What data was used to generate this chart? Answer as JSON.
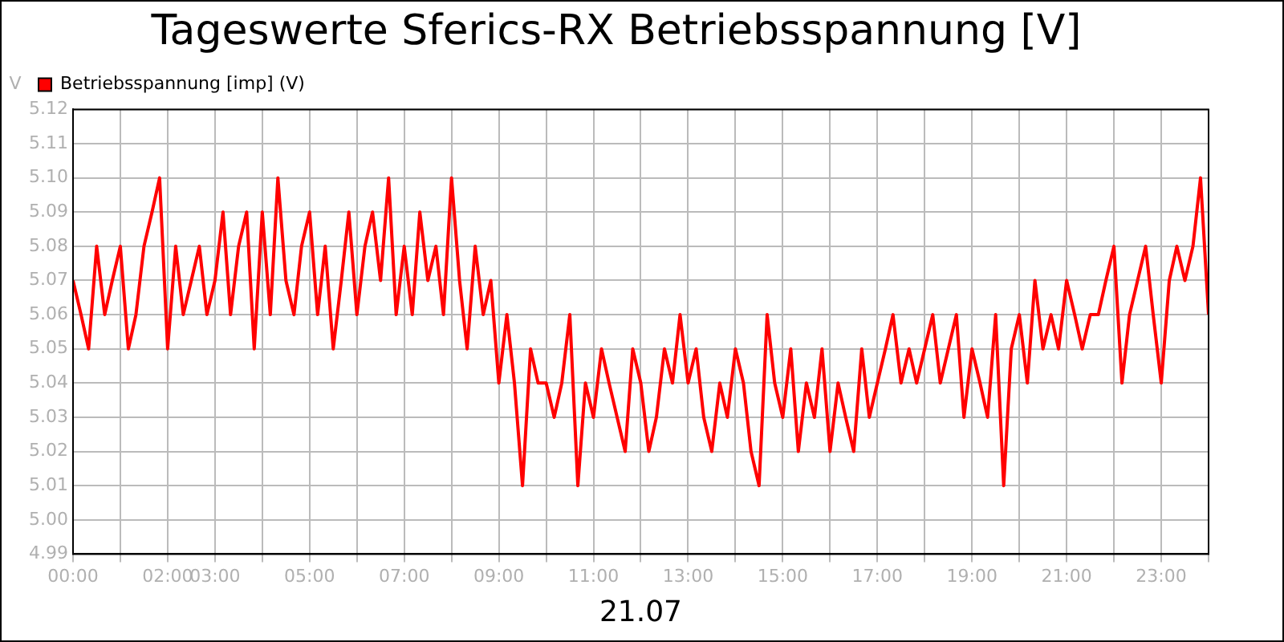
{
  "chart_data": {
    "type": "line",
    "title": "Tageswerte Sferics-RX Betriebsspannung [V]",
    "xlabel": "21.07",
    "ylabel": "V",
    "x": [
      0,
      0.17,
      0.33,
      0.5,
      0.67,
      0.83,
      1,
      1.17,
      1.33,
      1.5,
      1.67,
      1.83,
      2,
      2.17,
      2.33,
      2.5,
      2.67,
      2.83,
      3,
      3.17,
      3.33,
      3.5,
      3.67,
      3.83,
      4,
      4.17,
      4.33,
      4.5,
      4.67,
      4.83,
      5,
      5.17,
      5.33,
      5.5,
      5.67,
      5.83,
      6,
      6.17,
      6.33,
      6.5,
      6.67,
      6.83,
      7,
      7.17,
      7.33,
      7.5,
      7.67,
      7.83,
      8,
      8.17,
      8.33,
      8.5,
      8.67,
      8.83,
      9,
      9.17,
      9.33,
      9.5,
      9.67,
      9.83,
      10,
      10.17,
      10.33,
      10.5,
      10.67,
      10.83,
      11,
      11.17,
      11.33,
      11.5,
      11.67,
      11.83,
      12,
      12.17,
      12.33,
      12.5,
      12.67,
      12.83,
      13,
      13.17,
      13.33,
      13.5,
      13.67,
      13.83,
      14,
      14.17,
      14.33,
      14.5,
      14.67,
      14.83,
      15,
      15.17,
      15.33,
      15.5,
      15.67,
      15.83,
      16,
      16.17,
      16.33,
      16.5,
      16.67,
      16.83,
      17,
      17.17,
      17.33,
      17.5,
      17.67,
      17.83,
      18,
      18.17,
      18.33,
      18.5,
      18.67,
      18.83,
      19,
      19.17,
      19.33,
      19.5,
      19.67,
      19.83,
      20,
      20.17,
      20.33,
      20.5,
      20.67,
      20.83,
      21,
      21.17,
      21.33,
      21.5,
      21.67,
      21.83,
      22,
      22.17,
      22.33,
      22.5,
      22.67,
      22.83,
      23,
      23.17,
      23.33,
      23.5,
      23.67,
      23.83,
      24
    ],
    "series": [
      {
        "name": "Betriebsspannung [imp] (V)",
        "color": "#ff0000",
        "values": [
          5.07,
          5.06,
          5.05,
          5.08,
          5.06,
          5.07,
          5.08,
          5.05,
          5.06,
          5.08,
          5.09,
          5.1,
          5.05,
          5.08,
          5.06,
          5.07,
          5.08,
          5.06,
          5.07,
          5.09,
          5.06,
          5.08,
          5.09,
          5.05,
          5.09,
          5.06,
          5.1,
          5.07,
          5.06,
          5.08,
          5.09,
          5.06,
          5.08,
          5.05,
          5.07,
          5.09,
          5.06,
          5.08,
          5.09,
          5.07,
          5.1,
          5.06,
          5.08,
          5.06,
          5.09,
          5.07,
          5.08,
          5.06,
          5.1,
          5.07,
          5.05,
          5.08,
          5.06,
          5.07,
          5.04,
          5.06,
          5.04,
          5.01,
          5.05,
          5.04,
          5.04,
          5.03,
          5.04,
          5.06,
          5.01,
          5.04,
          5.03,
          5.05,
          5.04,
          5.03,
          5.02,
          5.05,
          5.04,
          5.02,
          5.03,
          5.05,
          5.04,
          5.06,
          5.04,
          5.05,
          5.03,
          5.02,
          5.04,
          5.03,
          5.05,
          5.04,
          5.02,
          5.01,
          5.06,
          5.04,
          5.03,
          5.05,
          5.02,
          5.04,
          5.03,
          5.05,
          5.02,
          5.04,
          5.03,
          5.02,
          5.05,
          5.03,
          5.04,
          5.05,
          5.06,
          5.04,
          5.05,
          5.04,
          5.05,
          5.06,
          5.04,
          5.05,
          5.06,
          5.03,
          5.05,
          5.04,
          5.03,
          5.06,
          5.01,
          5.05,
          5.06,
          5.04,
          5.07,
          5.05,
          5.06,
          5.05,
          5.07,
          5.06,
          5.05,
          5.06,
          5.06,
          5.07,
          5.08,
          5.04,
          5.06,
          5.07,
          5.08,
          5.06,
          5.04,
          5.07,
          5.08,
          5.07,
          5.08,
          5.1,
          5.06
        ]
      }
    ],
    "xlim": [
      0,
      24
    ],
    "xticks": [
      {
        "value": 0,
        "label": "00:00"
      },
      {
        "value": 1,
        "label": null
      },
      {
        "value": 2,
        "label": "02:00"
      },
      {
        "value": 3,
        "label": "03:00"
      },
      {
        "value": 4,
        "label": null
      },
      {
        "value": 5,
        "label": "05:00"
      },
      {
        "value": 6,
        "label": null
      },
      {
        "value": 7,
        "label": "07:00"
      },
      {
        "value": 8,
        "label": null
      },
      {
        "value": 9,
        "label": "09:00"
      },
      {
        "value": 10,
        "label": null
      },
      {
        "value": 11,
        "label": "11:00"
      },
      {
        "value": 12,
        "label": null
      },
      {
        "value": 13,
        "label": "13:00"
      },
      {
        "value": 14,
        "label": null
      },
      {
        "value": 15,
        "label": "15:00"
      },
      {
        "value": 16,
        "label": null
      },
      {
        "value": 17,
        "label": "17:00"
      },
      {
        "value": 18,
        "label": null
      },
      {
        "value": 19,
        "label": "19:00"
      },
      {
        "value": 20,
        "label": null
      },
      {
        "value": 21,
        "label": "21:00"
      },
      {
        "value": 22,
        "label": null
      },
      {
        "value": 23,
        "label": "23:00"
      },
      {
        "value": 24,
        "label": null
      }
    ],
    "ylim": [
      4.99,
      5.12
    ],
    "yticks": [
      4.99,
      {
        "value": 5,
        "label": "5.00"
      },
      5.01,
      5.02,
      5.03,
      5.04,
      5.05,
      5.06,
      5.07,
      5.08,
      5.09,
      {
        "value": 5.1,
        "label": "5.10"
      },
      5.11,
      5.12
    ],
    "grid": true,
    "legend": "top left",
    "marker": "none",
    "line_style": "solid"
  }
}
